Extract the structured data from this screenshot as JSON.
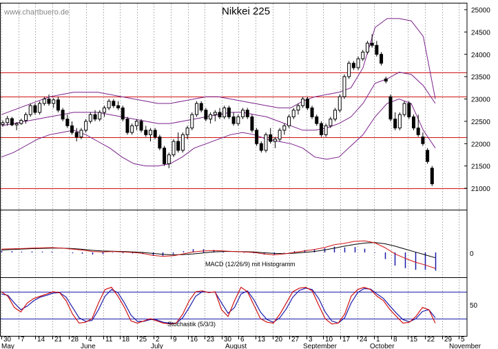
{
  "watermark": "www.chartbuero.de",
  "chart_data": [
    {
      "type": "candlestick",
      "title": "Nikkei 225",
      "ylim": [
        20000,
        25000
      ],
      "yticks": [
        "21000",
        "21500",
        "22000",
        "22500",
        "23000",
        "23500",
        "24000",
        "24500",
        "25000"
      ],
      "support_resistance": [
        21000,
        22150,
        23050,
        23600
      ],
      "candles": [
        [
          22430,
          22520,
          22380,
          22470
        ],
        [
          22470,
          22620,
          22400,
          22560
        ],
        [
          22560,
          22600,
          22390,
          22420
        ],
        [
          22420,
          22480,
          22300,
          22450
        ],
        [
          22450,
          22560,
          22420,
          22520
        ],
        [
          22520,
          22700,
          22450,
          22650
        ],
        [
          22650,
          22900,
          22600,
          22850
        ],
        [
          22850,
          22900,
          22650,
          22700
        ],
        [
          22700,
          22950,
          22650,
          22900
        ],
        [
          22900,
          23050,
          22850,
          23000
        ],
        [
          23000,
          23100,
          22850,
          22900
        ],
        [
          22900,
          23020,
          22800,
          22980
        ],
        [
          22980,
          23050,
          22700,
          22750
        ],
        [
          22750,
          22800,
          22500,
          22550
        ],
        [
          22550,
          22650,
          22350,
          22400
        ],
        [
          22400,
          22500,
          22200,
          22250
        ],
        [
          22250,
          22350,
          22050,
          22150
        ],
        [
          22150,
          22350,
          22100,
          22300
        ],
        [
          22300,
          22550,
          22250,
          22500
        ],
        [
          22500,
          22700,
          22450,
          22650
        ],
        [
          22650,
          22750,
          22500,
          22550
        ],
        [
          22550,
          22750,
          22500,
          22700
        ],
        [
          22700,
          22850,
          22600,
          22800
        ],
        [
          22800,
          23000,
          22750,
          22950
        ],
        [
          22950,
          23000,
          22800,
          22850
        ],
        [
          22850,
          22950,
          22750,
          22800
        ],
        [
          22800,
          22850,
          22500,
          22550
        ],
        [
          22550,
          22600,
          22200,
          22250
        ],
        [
          22250,
          22450,
          22200,
          22400
        ],
        [
          22400,
          22550,
          22300,
          22500
        ],
        [
          22500,
          22550,
          22250,
          22300
        ],
        [
          22300,
          22400,
          22150,
          22200
        ],
        [
          22200,
          22350,
          22050,
          22300
        ],
        [
          22300,
          22350,
          22100,
          22150
        ],
        [
          22150,
          22200,
          21850,
          21900
        ],
        [
          21900,
          21950,
          21500,
          21550
        ],
        [
          21550,
          21800,
          21450,
          21750
        ],
        [
          21750,
          22100,
          21700,
          22050
        ],
        [
          22050,
          22250,
          21800,
          21850
        ],
        [
          21850,
          22250,
          21800,
          22200
        ],
        [
          22200,
          22400,
          22100,
          22350
        ],
        [
          22350,
          22700,
          22300,
          22650
        ],
        [
          22650,
          22950,
          22600,
          22900
        ],
        [
          22900,
          22950,
          22700,
          22750
        ],
        [
          22750,
          22800,
          22500,
          22550
        ],
        [
          22550,
          22700,
          22450,
          22650
        ],
        [
          22650,
          22750,
          22500,
          22700
        ],
        [
          22700,
          22800,
          22550,
          22600
        ],
        [
          22600,
          22850,
          22550,
          22800
        ],
        [
          22800,
          22850,
          22550,
          22600
        ],
        [
          22600,
          22700,
          22400,
          22450
        ],
        [
          22450,
          22650,
          22400,
          22600
        ],
        [
          22600,
          22800,
          22550,
          22750
        ],
        [
          22750,
          22800,
          22550,
          22600
        ],
        [
          22600,
          22650,
          22250,
          22300
        ],
        [
          22300,
          22350,
          21950,
          22000
        ],
        [
          22000,
          22050,
          21800,
          21850
        ],
        [
          21850,
          22250,
          21800,
          22200
        ],
        [
          22200,
          22350,
          22000,
          22050
        ],
        [
          22050,
          22150,
          21900,
          22100
        ],
        [
          22100,
          22350,
          22050,
          22300
        ],
        [
          22300,
          22450,
          22200,
          22400
        ],
        [
          22400,
          22650,
          22350,
          22600
        ],
        [
          22600,
          22800,
          22550,
          22750
        ],
        [
          22750,
          22900,
          22650,
          22850
        ],
        [
          22850,
          23050,
          22800,
          23000
        ],
        [
          23000,
          23050,
          22750,
          22800
        ],
        [
          22800,
          22850,
          22550,
          22600
        ],
        [
          22600,
          22650,
          22400,
          22450
        ],
        [
          22450,
          22500,
          22150,
          22200
        ],
        [
          22200,
          22450,
          22150,
          22400
        ],
        [
          22400,
          22600,
          22350,
          22550
        ],
        [
          22550,
          22800,
          22500,
          22750
        ],
        [
          22750,
          23100,
          22700,
          23050
        ],
        [
          23050,
          23550,
          23000,
          23500
        ],
        [
          23500,
          23850,
          23450,
          23800
        ],
        [
          23800,
          23850,
          23650,
          23700
        ],
        [
          23700,
          23950,
          23650,
          23900
        ],
        [
          23900,
          24100,
          23850,
          24050
        ],
        [
          24050,
          24300,
          24000,
          24250
        ],
        [
          24250,
          24450,
          24150,
          24200
        ],
        [
          24200,
          24300,
          23950,
          24000
        ],
        [
          24000,
          24050,
          23750,
          23800
        ],
        [
          23450,
          23500,
          23350,
          23400
        ],
        [
          23050,
          23100,
          22500,
          22550
        ],
        [
          22550,
          22700,
          22300,
          22350
        ],
        [
          22350,
          22700,
          22300,
          22650
        ],
        [
          22650,
          22950,
          22600,
          22900
        ],
        [
          22900,
          22950,
          22550,
          22600
        ],
        [
          22600,
          22650,
          22300,
          22350
        ],
        [
          22350,
          22650,
          22150,
          22200
        ],
        [
          22150,
          22250,
          21950,
          22000
        ],
        [
          21850,
          21900,
          21550,
          21600
        ],
        [
          21450,
          21500,
          21050,
          21100
        ]
      ],
      "bollinger": {
        "mid": [
          22400,
          22450,
          22500,
          22550,
          22600,
          22650,
          22700,
          22700,
          22700,
          22650,
          22600,
          22550,
          22500,
          22450,
          22450,
          22500,
          22550,
          22600,
          22650,
          22700,
          22700,
          22650,
          22600,
          22500,
          22400,
          22300,
          22300,
          22350,
          22450,
          22600,
          22900,
          23350,
          23450,
          23600,
          23550,
          23300,
          22900
        ],
        "upper": [
          22650,
          22750,
          22850,
          22950,
          23050,
          23100,
          23150,
          23150,
          23150,
          23100,
          23050,
          23000,
          22950,
          22900,
          22900,
          22950,
          23000,
          23050,
          23050,
          23000,
          22950,
          22900,
          22850,
          22800,
          22800,
          22950,
          23050,
          23100,
          23150,
          23250,
          23700,
          24600,
          24800,
          24800,
          24750,
          24400,
          23000
        ],
        "lower": [
          21700,
          21800,
          21950,
          22100,
          22200,
          22250,
          22300,
          22200,
          22050,
          21900,
          21700,
          21550,
          21500,
          21500,
          21550,
          21700,
          21900,
          22000,
          22100,
          22200,
          22250,
          22200,
          22100,
          22050,
          22000,
          21900,
          21700,
          21650,
          21700,
          21950,
          22200,
          22600,
          22900,
          23000,
          22900,
          22300,
          21900
        ]
      },
      "x_tick_labels": [
        "30",
        "7",
        "14",
        "21",
        "28",
        "4",
        "11",
        "18",
        "25",
        "2",
        "9",
        "16",
        "23",
        "30",
        "6",
        "13",
        "20",
        "27",
        "3",
        "10",
        "17",
        "24",
        "1",
        "8",
        "15",
        "22",
        "29",
        "5"
      ],
      "month_labels": [
        "May",
        "June",
        "July",
        "August",
        "September",
        "October",
        "November"
      ]
    },
    {
      "type": "line",
      "title": "MACD (12/26/9) mit Histogramm",
      "yticks": [
        "0"
      ],
      "series": [
        {
          "values": [
            70,
            75,
            80,
            90,
            95,
            100,
            90,
            70,
            50,
            20,
            10,
            20,
            10,
            0,
            -20,
            -60,
            -80,
            -70,
            -30,
            10,
            30,
            40,
            30,
            20,
            10,
            0,
            -30,
            -50,
            -30,
            0,
            30,
            60,
            100,
            160,
            190,
            230,
            240,
            200,
            100,
            -30,
            -120,
            -200,
            -260,
            -330
          ]
        },
        {
          "values": [
            50,
            60,
            70,
            78,
            85,
            90,
            88,
            80,
            65,
            45,
            30,
            25,
            20,
            12,
            0,
            -20,
            -40,
            -50,
            -45,
            -30,
            -10,
            10,
            20,
            20,
            15,
            10,
            -5,
            -20,
            -25,
            -15,
            0,
            20,
            50,
            90,
            130,
            165,
            195,
            205,
            180,
            130,
            70,
            10,
            -50,
            -110
          ]
        }
      ]
    },
    {
      "type": "line",
      "title": "Stochastik (5/3/3)",
      "yticks": [
        "50"
      ],
      "series": [
        {
          "values": [
            80,
            70,
            45,
            35,
            55,
            65,
            70,
            75,
            80,
            78,
            60,
            30,
            10,
            12,
            20,
            55,
            85,
            90,
            70,
            45,
            15,
            10,
            15,
            20,
            15,
            10,
            8,
            10,
            30,
            60,
            80,
            82,
            78,
            80,
            40,
            25,
            60,
            90,
            80,
            50,
            20,
            12,
            10,
            30,
            55,
            80,
            88,
            90,
            82,
            50,
            20,
            8,
            10,
            30,
            70,
            85,
            90,
            85,
            70,
            60,
            40,
            25,
            10,
            12,
            25,
            45,
            40,
            10
          ]
        },
        {
          "values": [
            75,
            72,
            55,
            40,
            48,
            60,
            68,
            72,
            77,
            78,
            68,
            45,
            22,
            14,
            16,
            40,
            70,
            85,
            78,
            55,
            28,
            14,
            14,
            18,
            17,
            12,
            10,
            10,
            22,
            45,
            70,
            80,
            79,
            79,
            55,
            32,
            45,
            75,
            82,
            62,
            35,
            18,
            12,
            22,
            42,
            68,
            83,
            88,
            85,
            65,
            35,
            15,
            10,
            22,
            55,
            78,
            87,
            86,
            75,
            65,
            48,
            32,
            18,
            13,
            20,
            36,
            40,
            22
          ]
        }
      ],
      "levels": [
        80,
        20
      ]
    }
  ]
}
